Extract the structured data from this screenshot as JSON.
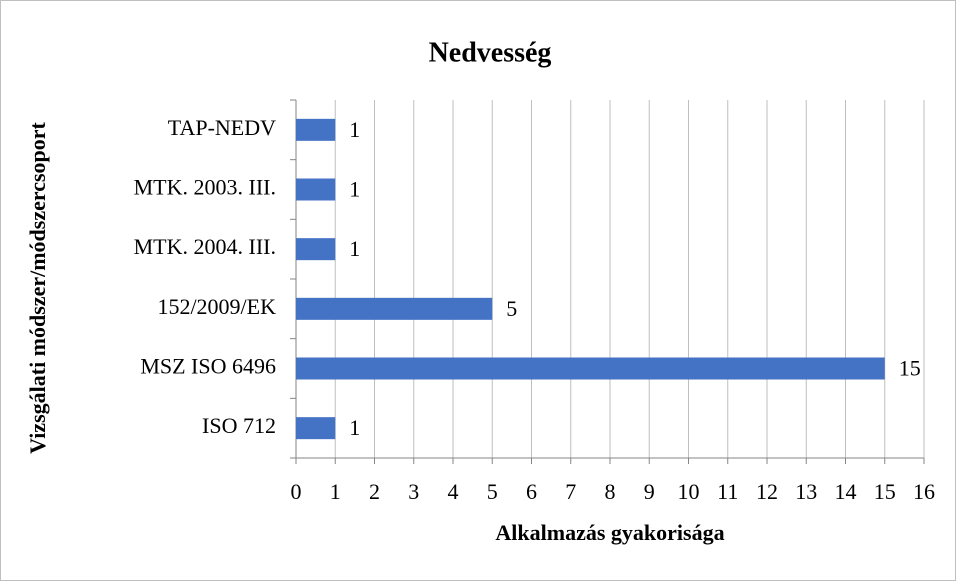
{
  "chart_data": {
    "type": "bar",
    "orientation": "horizontal",
    "title": "Nedvesség",
    "xlabel": "Alkalmazás gyakorisága",
    "ylabel": "Vizsgálati módszer/módszercsoport",
    "categories": [
      "TAP-NEDV",
      "MTK. 2003. III.",
      "MTK. 2004. III.",
      "152/2009/EK",
      "MSZ ISO 6496",
      "ISO 712"
    ],
    "values": [
      1,
      1,
      1,
      5,
      15,
      1
    ],
    "color": "#4472c4",
    "xlim": [
      0,
      16
    ],
    "xticks": [
      0,
      1,
      2,
      3,
      4,
      5,
      6,
      7,
      8,
      9,
      10,
      11,
      12,
      13,
      14,
      15,
      16
    ],
    "grid": true
  }
}
